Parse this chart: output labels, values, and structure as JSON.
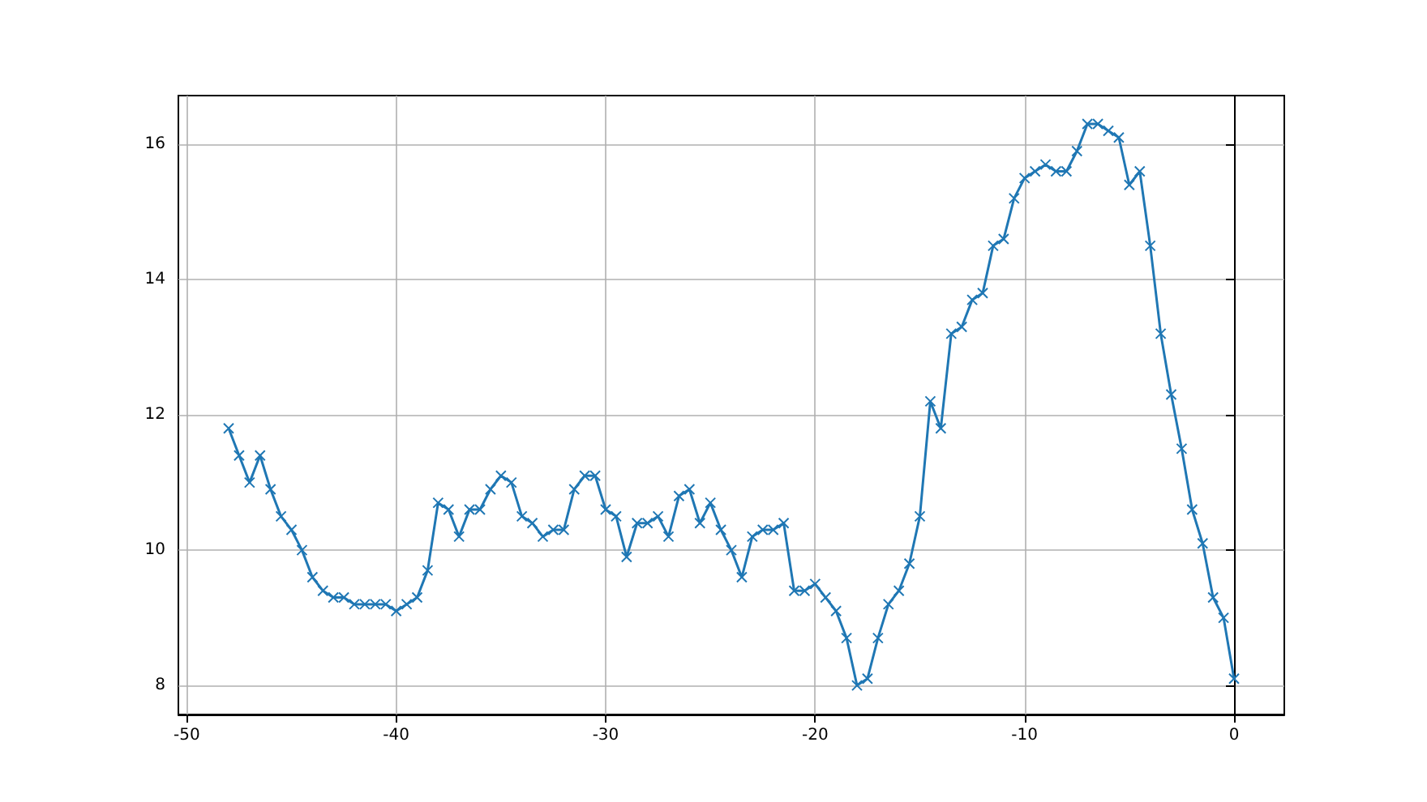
{
  "chart_data": {
    "type": "line",
    "color": "#1f77b4",
    "marker": "cross",
    "grid": true,
    "x": [
      -48,
      -47.5,
      -47,
      -46.5,
      -46,
      -45.5,
      -45,
      -44.5,
      -44,
      -43.5,
      -43,
      -42.5,
      -42,
      -41.5,
      -41,
      -40.5,
      -40,
      -39.5,
      -39,
      -38.5,
      -38,
      -37.5,
      -37,
      -36.5,
      -36,
      -35.5,
      -35,
      -34.5,
      -34,
      -33.5,
      -33,
      -32.5,
      -32,
      -31.5,
      -31,
      -30.5,
      -30,
      -29.5,
      -29,
      -28.5,
      -28,
      -27.5,
      -27,
      -26.5,
      -26,
      -25.5,
      -25,
      -24.5,
      -24,
      -23.5,
      -23,
      -22.5,
      -22,
      -21.5,
      -21,
      -20.5,
      -20,
      -19.5,
      -19,
      -18.5,
      -18,
      -17.5,
      -17,
      -16.5,
      -16,
      -15.5,
      -15,
      -14.5,
      -14,
      -13.5,
      -13,
      -12.5,
      -12,
      -11.5,
      -11,
      -10.5,
      -10,
      -9.5,
      -9,
      -8.5,
      -8,
      -7.5,
      -7,
      -6.5,
      -6,
      -5.5,
      -5,
      -4.5,
      -4,
      -3.5,
      -3,
      -2.5,
      -2,
      -1.5,
      -1,
      -0.5,
      0
    ],
    "values": [
      11.8,
      11.4,
      11.0,
      11.4,
      10.9,
      10.5,
      10.3,
      10.0,
      9.6,
      9.4,
      9.3,
      9.3,
      9.2,
      9.2,
      9.2,
      9.2,
      9.1,
      9.2,
      9.3,
      9.7,
      10.7,
      10.6,
      10.2,
      10.6,
      10.6,
      10.9,
      11.1,
      11.0,
      10.5,
      10.4,
      10.2,
      10.3,
      10.3,
      10.9,
      11.1,
      11.1,
      10.6,
      10.5,
      9.9,
      10.4,
      10.4,
      10.5,
      10.2,
      10.8,
      10.9,
      10.4,
      10.7,
      10.3,
      10.0,
      9.6,
      10.2,
      10.3,
      10.3,
      10.4,
      9.4,
      9.4,
      9.5,
      9.3,
      9.1,
      8.7,
      8.0,
      8.1,
      8.7,
      9.2,
      9.4,
      9.8,
      10.5,
      12.2,
      11.8,
      13.2,
      13.3,
      13.7,
      13.8,
      14.5,
      14.6,
      15.2,
      15.5,
      15.6,
      15.7,
      15.6,
      15.6,
      15.9,
      16.3,
      16.3,
      16.2,
      16.1,
      15.4,
      15.6,
      14.5,
      13.2,
      12.3,
      11.5,
      10.6,
      10.1,
      9.3,
      9.0,
      8.1
    ],
    "xlim": [
      -50.4,
      2.4
    ],
    "xticks": [
      -50,
      -40,
      -30,
      -20,
      -10,
      0
    ],
    "ylim": [
      7.57,
      16.72
    ],
    "yticks": [
      8,
      10,
      12,
      14,
      16
    ]
  }
}
